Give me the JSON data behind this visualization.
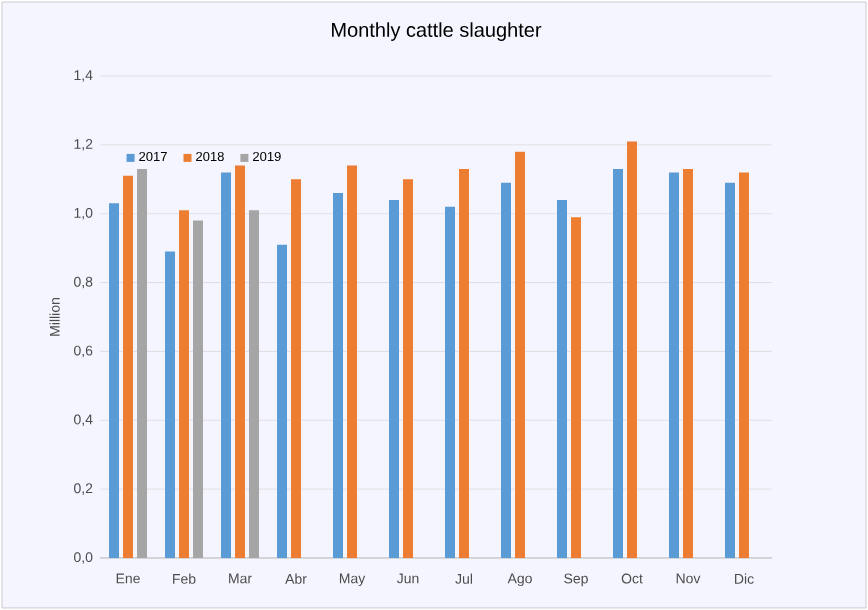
{
  "chart_data": {
    "type": "bar",
    "title": "Monthly cattle slaughter",
    "ylabel": "Million",
    "categories": [
      "Ene",
      "Feb",
      "Mar",
      "Abr",
      "May",
      "Jun",
      "Jul",
      "Ago",
      "Sep",
      "Oct",
      "Nov",
      "Dic"
    ],
    "series": [
      {
        "name": "2017",
        "color": "#5b9bd5",
        "values": [
          1.03,
          0.89,
          1.12,
          0.91,
          1.06,
          1.04,
          1.02,
          1.09,
          1.04,
          1.13,
          1.12,
          1.09
        ]
      },
      {
        "name": "2018",
        "color": "#ed7d31",
        "values": [
          1.11,
          1.01,
          1.14,
          1.1,
          1.14,
          1.1,
          1.13,
          1.18,
          0.99,
          1.21,
          1.13,
          1.12
        ]
      },
      {
        "name": "2019",
        "color": "#a5a5a5",
        "values": [
          1.13,
          0.98,
          1.01,
          null,
          null,
          null,
          null,
          null,
          null,
          null,
          null,
          null
        ]
      }
    ],
    "ylim": [
      0,
      1.4
    ],
    "yticks": [
      {
        "value": 0,
        "label": "0,0"
      },
      {
        "value": 0.2,
        "label": "0,2"
      },
      {
        "value": 0.4,
        "label": "0,4"
      },
      {
        "value": 0.6,
        "label": "0,6"
      },
      {
        "value": 0.8,
        "label": "0,8"
      },
      {
        "value": 1.0,
        "label": "1,0"
      },
      {
        "value": 1.2,
        "label": "1,2"
      },
      {
        "value": 1.4,
        "label": "1,4"
      }
    ],
    "grid": "y",
    "legend": "top left"
  }
}
